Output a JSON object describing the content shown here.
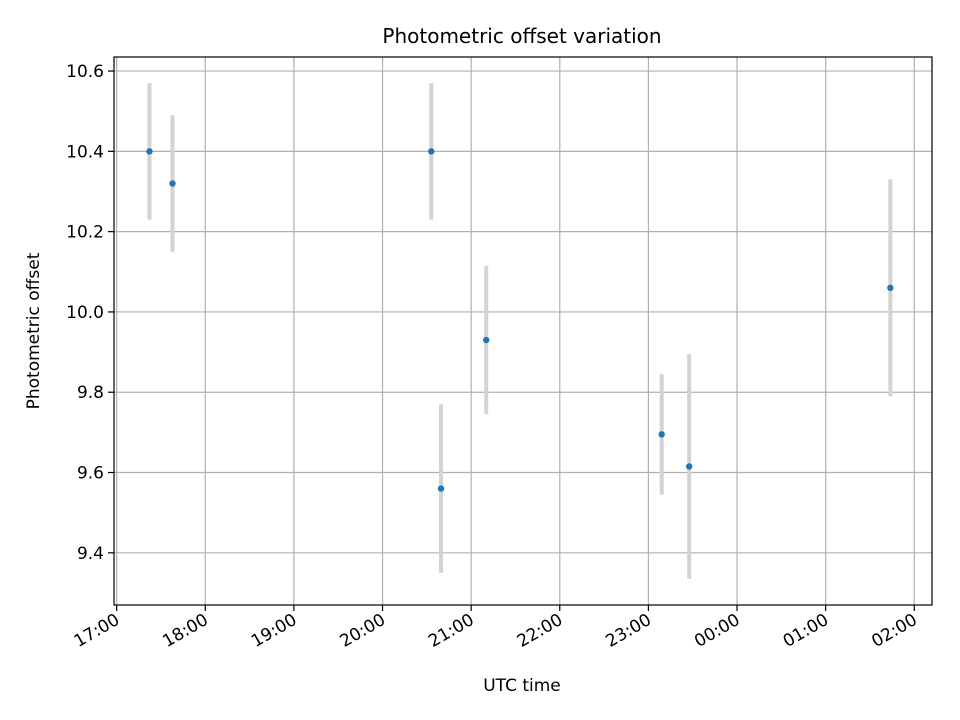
{
  "chart_data": {
    "type": "scatter",
    "title": "Photometric offset variation",
    "xlabel": "UTC time",
    "ylabel": "Photometric offset",
    "x_tick_labels": [
      "17:00",
      "18:00",
      "19:00",
      "20:00",
      "21:00",
      "22:00",
      "23:00",
      "00:00",
      "01:00",
      "02:00"
    ],
    "x_tick_hours": [
      17,
      18,
      19,
      20,
      21,
      22,
      23,
      24,
      25,
      26
    ],
    "xlim_hours": [
      16.97,
      26.2
    ],
    "y_tick_labels": [
      "9.4",
      "9.6",
      "9.8",
      "10.0",
      "10.2",
      "10.4",
      "10.6"
    ],
    "y_tick_values": [
      9.4,
      9.6,
      9.8,
      10.0,
      10.2,
      10.4,
      10.6
    ],
    "ylim": [
      9.27,
      10.635
    ],
    "grid": true,
    "colors": {
      "point": "#1f77b4",
      "errorbar": "#d3d3d3",
      "grid": "#b0b0b0"
    },
    "points": [
      {
        "time": "17:22",
        "x_hours": 17.37,
        "y": 10.4,
        "yerr": 0.17
      },
      {
        "time": "17:37",
        "x_hours": 17.63,
        "y": 10.32,
        "yerr": 0.17
      },
      {
        "time": "20:32",
        "x_hours": 20.55,
        "y": 10.4,
        "yerr": 0.17
      },
      {
        "time": "20:39",
        "x_hours": 20.66,
        "y": 9.56,
        "yerr": 0.21
      },
      {
        "time": "21:10",
        "x_hours": 21.17,
        "y": 9.93,
        "yerr": 0.185
      },
      {
        "time": "23:09",
        "x_hours": 23.15,
        "y": 9.695,
        "yerr": 0.15
      },
      {
        "time": "23:28",
        "x_hours": 23.46,
        "y": 9.615,
        "yerr": 0.28
      },
      {
        "time": "01:44",
        "x_hours": 25.73,
        "y": 10.06,
        "yerr": 0.27
      }
    ]
  }
}
